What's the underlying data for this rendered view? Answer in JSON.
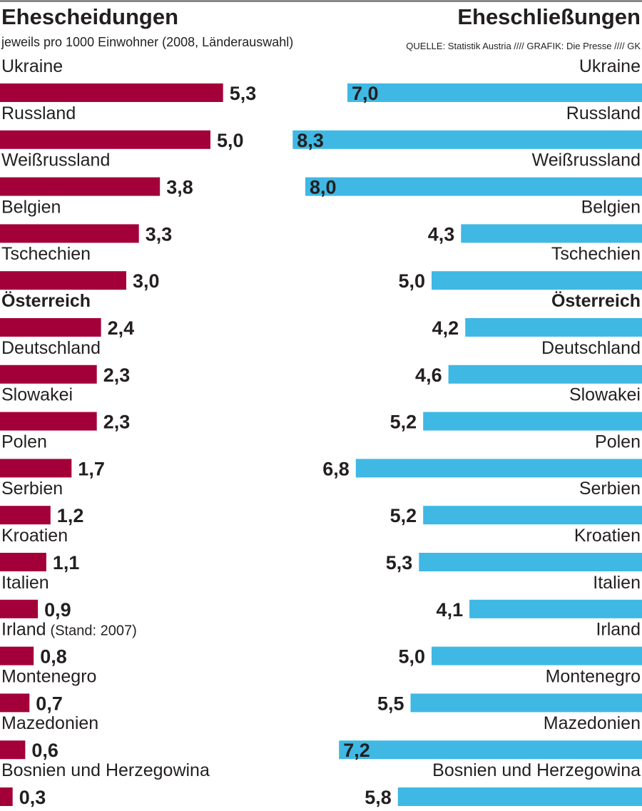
{
  "chart_data": [
    {
      "type": "bar",
      "orientation": "horizontal",
      "title": "Ehescheidungen",
      "subtitle": "jeweils pro 1000 Einwohner (2008, Länderauswahl)",
      "categories": [
        "Ukraine",
        "Russland",
        "Weißrussland",
        "Belgien",
        "Tschechien",
        "Österreich",
        "Deutschland",
        "Slowakei",
        "Polen",
        "Serbien",
        "Kroatien",
        "Italien",
        "Irland",
        "Montenegro",
        "Mazedonien",
        "Bosnien und Herzegowina"
      ],
      "category_notes": [
        "",
        "",
        "",
        "",
        "",
        "",
        "",
        "",
        "",
        "",
        "",
        "",
        "(Stand: 2007)",
        "",
        "",
        ""
      ],
      "highlight_category": "Österreich",
      "values": [
        5.3,
        5.0,
        3.8,
        3.3,
        3.0,
        2.4,
        2.3,
        2.3,
        1.7,
        1.2,
        1.1,
        0.9,
        0.8,
        0.7,
        0.6,
        0.3
      ],
      "value_labels": [
        "5,3",
        "5,0",
        "3,8",
        "3,3",
        "3,0",
        "2,4",
        "2,3",
        "2,3",
        "1,7",
        "1,2",
        "1,1",
        "0,9",
        "0,8",
        "0,7",
        "0,6",
        "0,3"
      ],
      "bar_color": "#a3003a",
      "direction": "left-to-right",
      "xlim": [
        0,
        10
      ]
    },
    {
      "type": "bar",
      "orientation": "horizontal",
      "title": "Eheschließungen",
      "source": "QUELLE: Statistik Austria //// GRAFIK: Die Presse //// GK",
      "categories": [
        "Ukraine",
        "Russland",
        "Weißrussland",
        "Belgien",
        "Tschechien",
        "Österreich",
        "Deutschland",
        "Slowakei",
        "Polen",
        "Serbien",
        "Kroatien",
        "Italien",
        "Irland",
        "Montenegro",
        "Mazedonien",
        "Bosnien und Herzegowina"
      ],
      "highlight_category": "Österreich",
      "values": [
        7.0,
        8.3,
        8.0,
        4.3,
        5.0,
        4.2,
        4.6,
        5.2,
        6.8,
        5.2,
        5.3,
        4.1,
        5.0,
        5.5,
        7.2,
        5.8
      ],
      "value_labels": [
        "7,0",
        "8,3",
        "8,0",
        "4,3",
        "5,0",
        "4,2",
        "4,6",
        "5,2",
        "6,8",
        "5,2",
        "5,3",
        "4,1",
        "5,0",
        "5,5",
        "7,2",
        "5,8"
      ],
      "bar_color": "#3fb8e4",
      "direction": "right-to-left",
      "xlim": [
        0,
        8.3
      ]
    }
  ],
  "colors": {
    "text": "#231f20",
    "rule": "#555555"
  }
}
